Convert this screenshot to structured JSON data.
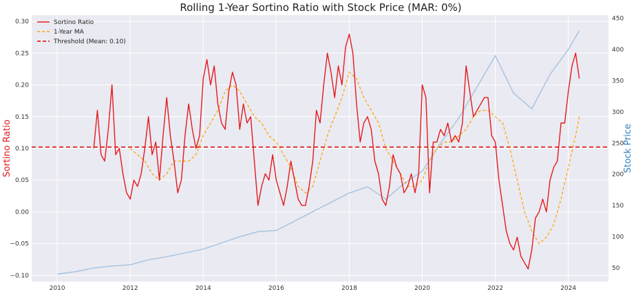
{
  "chart_data": {
    "type": "line",
    "title": "Rolling 1-Year Sortino Ratio with Stock Price (MAR: 0%)",
    "xlabel": "",
    "ylabel": "Sortino Ratio",
    "y2label": "Stock Price",
    "xlim": [
      2009.3,
      2025.1
    ],
    "ylim": [
      -0.11,
      0.31
    ],
    "y2lim": [
      28,
      455
    ],
    "x_ticks": [
      2010,
      2012,
      2014,
      2016,
      2018,
      2020,
      2022,
      2024
    ],
    "y_ticks": [
      -0.1,
      -0.05,
      0.0,
      0.05,
      0.1,
      0.15,
      0.2,
      0.25,
      0.3
    ],
    "y_tick_labels": [
      "−0.10",
      "−0.05",
      "0.00",
      "0.05",
      "0.10",
      "0.15",
      "0.20",
      "0.25",
      "0.30"
    ],
    "y2_ticks": [
      50,
      100,
      150,
      200,
      250,
      300,
      350,
      400,
      450
    ],
    "y2_tick_labels": [
      "50",
      "100",
      "150",
      "200",
      "250",
      "300",
      "350",
      "400",
      "450"
    ],
    "grid": true,
    "legend_position": "top-left",
    "threshold": {
      "name": "Threshold (Mean: 0.10)",
      "value": 0.102
    },
    "colors": {
      "sortino": "#e31a1c",
      "ma": "#ffa500",
      "threshold": "#dd0000",
      "price": "#a9c4df",
      "ylabel": "#e31a1c",
      "y2label": "#2f7fc1",
      "plot_bg": "#eaeaf2",
      "grid": "#ffffff"
    },
    "series": [
      {
        "name": "Sortino Ratio",
        "axis": "left",
        "style": "solid",
        "x": [
          2011.0,
          2011.1,
          2011.2,
          2011.3,
          2011.4,
          2011.5,
          2011.6,
          2011.7,
          2011.8,
          2011.9,
          2012.0,
          2012.1,
          2012.2,
          2012.3,
          2012.4,
          2012.5,
          2012.6,
          2012.7,
          2012.8,
          2012.9,
          2013.0,
          2013.1,
          2013.2,
          2013.3,
          2013.4,
          2013.5,
          2013.6,
          2013.7,
          2013.8,
          2013.9,
          2014.0,
          2014.1,
          2014.2,
          2014.3,
          2014.4,
          2014.5,
          2014.6,
          2014.7,
          2014.8,
          2014.9,
          2015.0,
          2015.1,
          2015.2,
          2015.3,
          2015.4,
          2015.5,
          2015.6,
          2015.7,
          2015.8,
          2015.9,
          2016.0,
          2016.1,
          2016.2,
          2016.3,
          2016.4,
          2016.5,
          2016.6,
          2016.7,
          2016.8,
          2016.9,
          2017.0,
          2017.1,
          2017.2,
          2017.3,
          2017.4,
          2017.5,
          2017.6,
          2017.7,
          2017.8,
          2017.9,
          2018.0,
          2018.1,
          2018.2,
          2018.3,
          2018.4,
          2018.5,
          2018.6,
          2018.7,
          2018.8,
          2018.9,
          2019.0,
          2019.1,
          2019.2,
          2019.3,
          2019.4,
          2019.5,
          2019.6,
          2019.7,
          2019.8,
          2019.9,
          2020.0,
          2020.1,
          2020.2,
          2020.3,
          2020.4,
          2020.5,
          2020.6,
          2020.7,
          2020.8,
          2020.9,
          2021.0,
          2021.1,
          2021.2,
          2021.3,
          2021.4,
          2021.5,
          2021.6,
          2021.7,
          2021.8,
          2021.9,
          2022.0,
          2022.1,
          2022.2,
          2022.3,
          2022.4,
          2022.5,
          2022.6,
          2022.7,
          2022.8,
          2022.9,
          2023.0,
          2023.1,
          2023.2,
          2023.3,
          2023.4,
          2023.5,
          2023.6,
          2023.7,
          2023.8,
          2023.9,
          2024.0,
          2024.1,
          2024.2,
          2024.3
        ],
        "values": [
          0.1,
          0.16,
          0.09,
          0.08,
          0.13,
          0.2,
          0.09,
          0.1,
          0.06,
          0.03,
          0.02,
          0.05,
          0.04,
          0.06,
          0.1,
          0.15,
          0.09,
          0.11,
          0.05,
          0.12,
          0.18,
          0.12,
          0.08,
          0.03,
          0.05,
          0.12,
          0.17,
          0.13,
          0.1,
          0.12,
          0.21,
          0.24,
          0.2,
          0.23,
          0.17,
          0.14,
          0.13,
          0.19,
          0.22,
          0.2,
          0.13,
          0.17,
          0.14,
          0.15,
          0.08,
          0.01,
          0.04,
          0.06,
          0.05,
          0.09,
          0.05,
          0.03,
          0.01,
          0.04,
          0.08,
          0.05,
          0.02,
          0.01,
          0.01,
          0.04,
          0.08,
          0.16,
          0.14,
          0.2,
          0.25,
          0.22,
          0.18,
          0.23,
          0.2,
          0.26,
          0.28,
          0.25,
          0.17,
          0.11,
          0.14,
          0.15,
          0.13,
          0.08,
          0.06,
          0.02,
          0.01,
          0.04,
          0.09,
          0.07,
          0.06,
          0.03,
          0.04,
          0.06,
          0.03,
          0.06,
          0.2,
          0.18,
          0.03,
          0.11,
          0.11,
          0.13,
          0.12,
          0.14,
          0.11,
          0.12,
          0.11,
          0.14,
          0.23,
          0.19,
          0.15,
          0.16,
          0.17,
          0.18,
          0.18,
          0.12,
          0.11,
          0.05,
          0.01,
          -0.03,
          -0.05,
          -0.06,
          -0.04,
          -0.07,
          -0.08,
          -0.09,
          -0.06,
          -0.01,
          0.0,
          0.02,
          0.0,
          0.05,
          0.07,
          0.08,
          0.14,
          0.14,
          0.19,
          0.23,
          0.25,
          0.21
        ]
      },
      {
        "name": "1-Year MA",
        "axis": "left",
        "style": "dashed",
        "x": [
          2012.0,
          2012.2,
          2012.4,
          2012.6,
          2012.8,
          2013.0,
          2013.2,
          2013.4,
          2013.6,
          2013.8,
          2014.0,
          2014.2,
          2014.4,
          2014.6,
          2014.8,
          2015.0,
          2015.2,
          2015.4,
          2015.6,
          2015.8,
          2016.0,
          2016.2,
          2016.4,
          2016.6,
          2016.8,
          2017.0,
          2017.2,
          2017.4,
          2017.6,
          2017.8,
          2018.0,
          2018.2,
          2018.4,
          2018.6,
          2018.8,
          2019.0,
          2019.2,
          2019.4,
          2019.6,
          2019.8,
          2020.0,
          2020.2,
          2020.4,
          2020.6,
          2020.8,
          2021.0,
          2021.2,
          2021.4,
          2021.6,
          2021.8,
          2022.0,
          2022.2,
          2022.4,
          2022.6,
          2022.8,
          2023.0,
          2023.2,
          2023.4,
          2023.6,
          2023.8,
          2024.0,
          2024.2,
          2024.3
        ],
        "values": [
          0.1,
          0.09,
          0.08,
          0.06,
          0.05,
          0.06,
          0.08,
          0.08,
          0.08,
          0.09,
          0.12,
          0.14,
          0.16,
          0.19,
          0.2,
          0.19,
          0.17,
          0.15,
          0.14,
          0.12,
          0.11,
          0.09,
          0.07,
          0.04,
          0.03,
          0.04,
          0.08,
          0.12,
          0.15,
          0.18,
          0.22,
          0.21,
          0.18,
          0.16,
          0.14,
          0.1,
          0.08,
          0.06,
          0.04,
          0.04,
          0.05,
          0.08,
          0.1,
          0.11,
          0.11,
          0.12,
          0.13,
          0.15,
          0.16,
          0.16,
          0.15,
          0.14,
          0.1,
          0.05,
          0.0,
          -0.03,
          -0.05,
          -0.04,
          -0.02,
          0.02,
          0.07,
          0.12,
          0.15
        ]
      },
      {
        "name": "Stock Price",
        "axis": "right",
        "style": "solid",
        "x": [
          2010.0,
          2010.5,
          2011.0,
          2011.5,
          2012.0,
          2012.5,
          2013.0,
          2013.5,
          2014.0,
          2014.5,
          2015.0,
          2015.5,
          2016.0,
          2016.5,
          2017.0,
          2017.5,
          2018.0,
          2018.5,
          2019.0,
          2019.5,
          2020.0,
          2020.5,
          2021.0,
          2021.5,
          2022.0,
          2022.5,
          2023.0,
          2023.5,
          2024.0,
          2024.3
        ],
        "values": [
          40,
          44,
          50,
          53,
          55,
          63,
          68,
          74,
          80,
          90,
          100,
          108,
          110,
          125,
          140,
          155,
          170,
          180,
          160,
          185,
          205,
          250,
          290,
          340,
          390,
          330,
          305,
          360,
          400,
          430
        ]
      }
    ]
  }
}
